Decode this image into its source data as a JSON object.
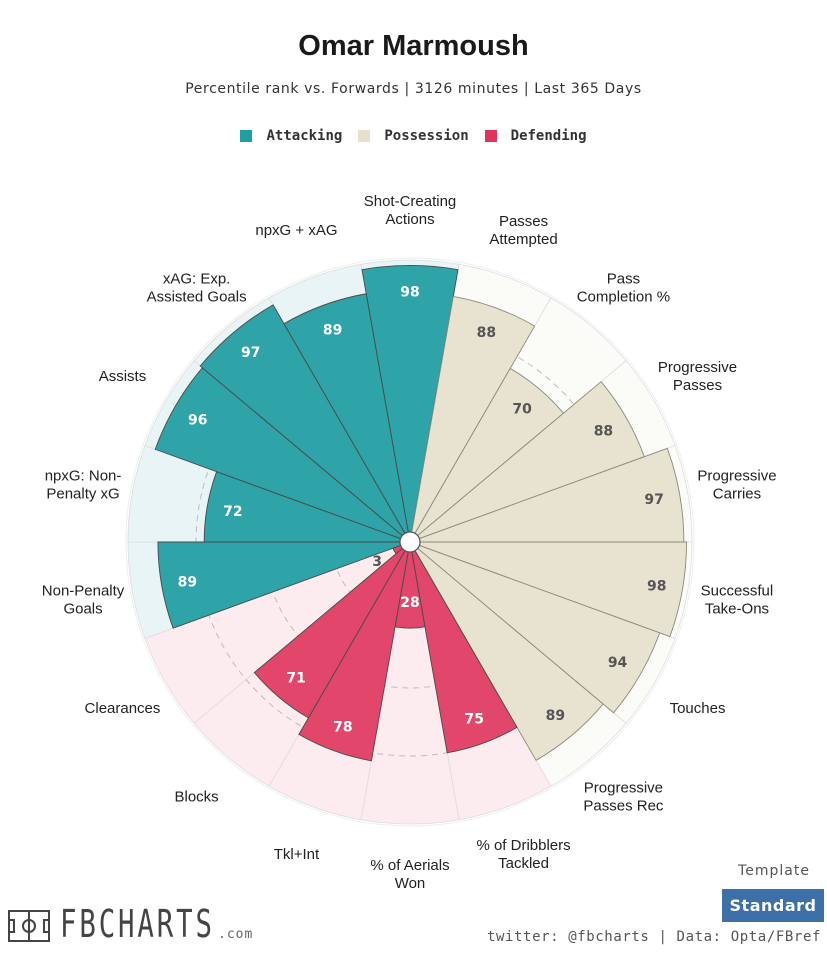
{
  "header": {
    "title": "Omar Marmoush",
    "subtitle": "Percentile rank vs. Forwards | 3126 minutes | Last 365 Days"
  },
  "legend": [
    {
      "label": "Attacking",
      "color": "#1f9ea3"
    },
    {
      "label": "Possession",
      "color": "#e6e0cc"
    },
    {
      "label": "Defending",
      "color": "#e0355a"
    }
  ],
  "chart_data": {
    "type": "radar-bar",
    "rlim": [
      0,
      100
    ],
    "categories": [
      "Shot-Creating Actions",
      "Passes Attempted",
      "Pass Completion %",
      "Progressive Passes",
      "Progressive Carries",
      "Successful Take-Ons",
      "Touches",
      "Progressive Passes Rec",
      "% of Dribblers Tackled",
      "% of Aerials Won",
      "Tkl+Int",
      "Blocks",
      "Clearances",
      "Non-Penalty Goals",
      "npxG: Non-Penalty xG",
      "Assists",
      "xAG: Exp. Assisted Goals",
      "npxG + xAG"
    ],
    "values": [
      98,
      88,
      70,
      88,
      97,
      98,
      94,
      89,
      75,
      28,
      78,
      71,
      3,
      89,
      72,
      96,
      97,
      89
    ],
    "groups": [
      "Attacking",
      "Possession",
      "Possession",
      "Possession",
      "Possession",
      "Possession",
      "Possession",
      "Possession",
      "Defending",
      "Defending",
      "Defending",
      "Defending",
      "Defending",
      "Attacking",
      "Attacking",
      "Attacking",
      "Attacking",
      "Attacking"
    ],
    "label_lines": [
      [
        "Shot-Creating",
        "Actions"
      ],
      [
        "Passes",
        "Attempted"
      ],
      [
        "Pass",
        "Completion %"
      ],
      [
        "Progressive",
        "Passes"
      ],
      [
        "Progressive",
        "Carries"
      ],
      [
        "Successful",
        "Take-Ons"
      ],
      [
        "Touches"
      ],
      [
        "Progressive",
        "Passes Rec"
      ],
      [
        "% of Dribblers",
        "Tackled"
      ],
      [
        "% of Aerials",
        "Won"
      ],
      [
        "Tkl+Int"
      ],
      [
        "Blocks"
      ],
      [
        "Clearances"
      ],
      [
        "Non-Penalty",
        "Goals"
      ],
      [
        "npxG: Non-",
        "Penalty xG"
      ],
      [
        "Assists"
      ],
      [
        "xAG: Exp.",
        "Assisted Goals"
      ],
      [
        "npxG + xAG"
      ]
    ],
    "colors": {
      "Attacking": {
        "fill": "#2ea3a8",
        "bg": "#e8f4f5",
        "text": "#ffffff"
      },
      "Possession": {
        "fill": "#e8e2d0",
        "bg": "#fbfbf8",
        "text": "#555555"
      },
      "Defending": {
        "fill": "#e2466a",
        "bg": "#fcebef",
        "text": "#ffffff"
      }
    },
    "grid": true
  },
  "footer": {
    "template_label": "Template",
    "template_button": "Standard",
    "credit": "twitter: @fbcharts | Data: Opta/FBref",
    "logo_text": "FBCHARTS",
    "logo_suffix": ".com"
  }
}
